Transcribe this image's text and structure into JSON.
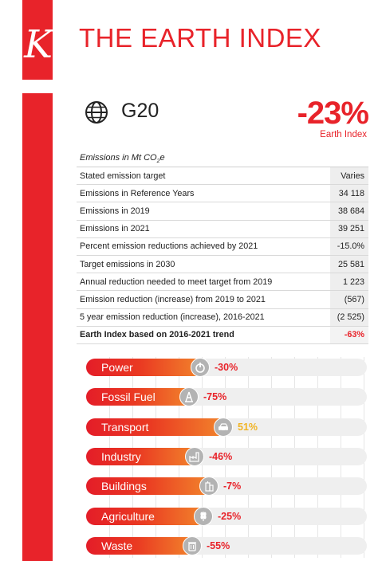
{
  "header": {
    "logo_letter": "K",
    "title": "THE EARTH INDEX"
  },
  "region": {
    "name": "G20",
    "index_value": "-23%",
    "index_label": "Earth Index"
  },
  "table": {
    "heading_prefix": "Emissions in Mt CO",
    "heading_sub": "2",
    "heading_suffix": "e",
    "rows": [
      {
        "label": "Stated emission target",
        "value": "Varies"
      },
      {
        "label": "Emissions in Reference Years",
        "value": "34 118"
      },
      {
        "label": "Emissions in 2019",
        "value": "38 684"
      },
      {
        "label": "Emissions in 2021",
        "value": "39 251"
      },
      {
        "label": "Percent emission reductions achieved by 2021",
        "value": "-15.0%"
      },
      {
        "label": "Target emissions in 2030",
        "value": "25 581"
      },
      {
        "label": "Annual reduction needed to meet target from 2019",
        "value": "1 223"
      },
      {
        "label": "Emission reduction (increase) from 2019 to 2021",
        "value": "(567)"
      },
      {
        "label": "5 year emission reduction (increase), 2016-2021",
        "value": "(2 525)"
      },
      {
        "label": "Earth Index based on 2016-2021 trend",
        "value": "-63%"
      }
    ]
  },
  "sectors": [
    {
      "name": "Power",
      "value": "-30%",
      "icon": "power-icon",
      "bar_fraction": 0.43,
      "positive": false
    },
    {
      "name": "Fossil Fuel",
      "value": "-75%",
      "icon": "oil-rig-icon",
      "bar_fraction": 0.39,
      "positive": false
    },
    {
      "name": "Transport",
      "value": "51%",
      "icon": "car-icon",
      "bar_fraction": 0.51,
      "positive": true
    },
    {
      "name": "Industry",
      "value": "-46%",
      "icon": "factory-icon",
      "bar_fraction": 0.41,
      "positive": false
    },
    {
      "name": "Buildings",
      "value": "-7%",
      "icon": "building-icon",
      "bar_fraction": 0.46,
      "positive": false
    },
    {
      "name": "Agriculture",
      "value": "-25%",
      "icon": "wheat-icon",
      "bar_fraction": 0.44,
      "positive": false
    },
    {
      "name": "Waste",
      "value": "-55%",
      "icon": "trash-icon",
      "bar_fraction": 0.4,
      "positive": false
    }
  ],
  "colors": {
    "accent": "#e8232a",
    "positive": "#f0b323",
    "icon_bg": "#b3b3b3"
  }
}
